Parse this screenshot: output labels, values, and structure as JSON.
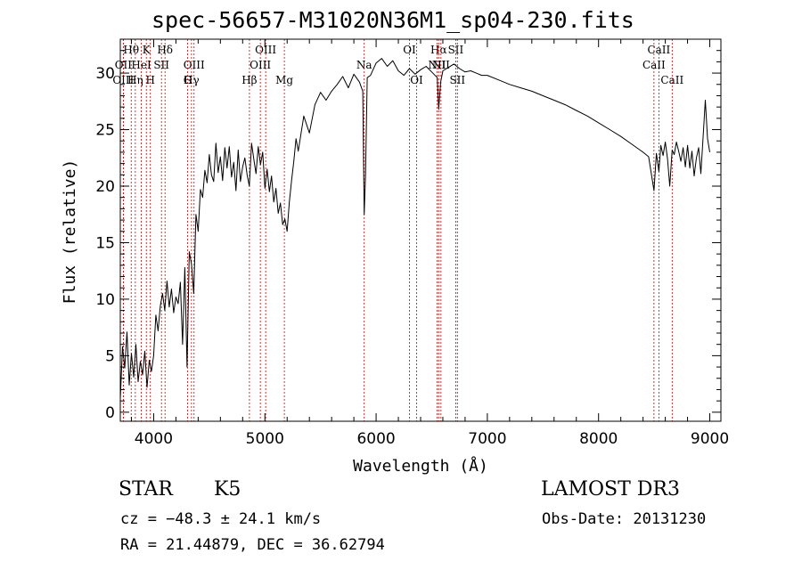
{
  "title": "spec-56657-M31020N36M1_sp04-230.fits",
  "info": {
    "class": "STAR",
    "subclass": "K5",
    "survey": "LAMOST DR3",
    "cz": "cz = −48.3 ± 24.1 km/s",
    "obs_date": "Obs-Date: 20131230",
    "radec": "RA =  21.44879, DEC =  36.62794"
  },
  "chart_data": {
    "type": "line",
    "title": "spec-56657-M31020N36M1_sp04-230.fits",
    "xlabel": "Wavelength (Å)",
    "ylabel": "Flux (relative)",
    "xlim": [
      3700,
      9100
    ],
    "ylim": [
      -0.8,
      33
    ],
    "xticks": [
      4000,
      5000,
      6000,
      7000,
      8000,
      9000
    ],
    "xtick_labels": [
      "4000",
      "5000",
      "6000",
      "7000",
      "8000",
      "9000"
    ],
    "yticks": [
      0,
      5,
      10,
      15,
      20,
      25,
      30
    ],
    "ytick_labels": [
      "0",
      "5",
      "10",
      "15",
      "20",
      "25",
      "30"
    ],
    "line_color": "#000000",
    "marker_color": "#cc0000",
    "series": [
      {
        "name": "flux",
        "x": [
          3700,
          3720,
          3740,
          3760,
          3780,
          3800,
          3820,
          3840,
          3860,
          3880,
          3900,
          3920,
          3940,
          3960,
          3980,
          4000,
          4020,
          4040,
          4060,
          4080,
          4100,
          4120,
          4140,
          4160,
          4180,
          4200,
          4220,
          4240,
          4260,
          4280,
          4300,
          4320,
          4340,
          4360,
          4380,
          4400,
          4420,
          4440,
          4460,
          4480,
          4500,
          4520,
          4540,
          4560,
          4580,
          4600,
          4620,
          4640,
          4660,
          4680,
          4700,
          4720,
          4740,
          4760,
          4780,
          4800,
          4820,
          4840,
          4860,
          4880,
          4900,
          4920,
          4940,
          4960,
          4980,
          5000,
          5020,
          5040,
          5060,
          5080,
          5100,
          5120,
          5140,
          5160,
          5180,
          5200,
          5220,
          5240,
          5260,
          5280,
          5300,
          5350,
          5400,
          5450,
          5500,
          5550,
          5600,
          5650,
          5700,
          5750,
          5800,
          5850,
          5880,
          5893,
          5905,
          5920,
          5950,
          6000,
          6050,
          6100,
          6150,
          6200,
          6250,
          6300,
          6350,
          6400,
          6450,
          6500,
          6550,
          6563,
          6580,
          6600,
          6650,
          6700,
          6750,
          6800,
          6850,
          6900,
          6950,
          7000,
          7100,
          7200,
          7300,
          7400,
          7500,
          7600,
          7700,
          7800,
          7900,
          8000,
          8100,
          8200,
          8300,
          8400,
          8450,
          8498,
          8520,
          8542,
          8560,
          8580,
          8600,
          8620,
          8640,
          8662,
          8680,
          8700,
          8720,
          8740,
          8760,
          8780,
          8800,
          8820,
          8840,
          8860,
          8880,
          8900,
          8920,
          8940,
          8960,
          8980,
          9000
        ],
        "y": [
          1.2,
          5.8,
          3.9,
          7.1,
          2.4,
          5.2,
          3.1,
          6.0,
          2.7,
          4.5,
          3.3,
          5.4,
          2.2,
          4.6,
          3.6,
          5.0,
          8.6,
          7.2,
          9.4,
          10.5,
          9.0,
          11.6,
          9.3,
          10.9,
          8.8,
          10.2,
          9.6,
          11.5,
          6.0,
          12.8,
          4.0,
          14.2,
          13.1,
          10.5,
          17.5,
          16.0,
          19.7,
          19.0,
          21.4,
          20.3,
          22.8,
          21.0,
          20.4,
          23.8,
          21.2,
          22.6,
          20.5,
          23.4,
          21.6,
          23.5,
          20.8,
          22.1,
          19.6,
          23.2,
          20.4,
          21.7,
          22.5,
          21.0,
          20.0,
          23.8,
          22.4,
          21.1,
          23.5,
          21.9,
          23.0,
          19.8,
          21.5,
          19.5,
          20.9,
          18.6,
          19.8,
          17.6,
          18.5,
          16.6,
          17.1,
          16.0,
          18.6,
          20.5,
          22.2,
          24.2,
          23.1,
          26.2,
          24.7,
          27.2,
          28.3,
          27.6,
          28.4,
          29.0,
          29.7,
          28.7,
          29.9,
          29.2,
          28.4,
          17.5,
          21.0,
          29.6,
          29.8,
          30.9,
          31.3,
          30.6,
          31.1,
          30.2,
          29.8,
          30.4,
          29.9,
          30.3,
          30.6,
          30.1,
          29.6,
          26.8,
          29.2,
          30.2,
          30.5,
          30.8,
          30.4,
          30.1,
          30.2,
          30.0,
          29.8,
          29.8,
          29.4,
          29.0,
          28.7,
          28.4,
          28.0,
          27.6,
          27.2,
          26.7,
          26.2,
          25.6,
          25.0,
          24.4,
          23.7,
          23.0,
          22.6,
          19.6,
          22.9,
          21.3,
          23.6,
          22.7,
          23.9,
          22.4,
          20.0,
          23.2,
          22.8,
          23.9,
          23.1,
          22.2,
          23.4,
          21.7,
          23.6,
          21.6,
          23.1,
          20.9,
          22.5,
          23.4,
          21.1,
          24.3,
          27.6,
          24.2,
          23.0
        ]
      }
    ],
    "line_markers": [
      {
        "label": "Hθ",
        "x": 3798
      },
      {
        "label": "K",
        "x": 3934
      },
      {
        "label": "Hδ",
        "x": 4102
      },
      {
        "label": "OII",
        "x": 3727
      },
      {
        "label": "HeI",
        "x": 3889
      },
      {
        "label": "SII",
        "x": 4070
      },
      {
        "label": "OIII",
        "x": 4363
      },
      {
        "label": "Hγ",
        "x": 4340
      },
      {
        "label": "OIII",
        "x": 3727
      },
      {
        "label": "Hη",
        "x": 3835
      },
      {
        "label": "H",
        "x": 3970
      },
      {
        "label": "G",
        "x": 4305
      },
      {
        "label": "OIII",
        "x": 5007
      },
      {
        "label": "OIII",
        "x": 4959
      },
      {
        "label": "Hβ",
        "x": 4861
      },
      {
        "label": "Mg",
        "x": 5175
      },
      {
        "label": "Na",
        "x": 5893
      },
      {
        "label": "OI",
        "x": 6300
      },
      {
        "label": "Hα",
        "x": 6563
      },
      {
        "label": "SII",
        "x": 6716
      },
      {
        "label": "NII",
        "x": 6548
      },
      {
        "label": "SII",
        "x": 6731
      },
      {
        "label": "NII",
        "x": 6583
      },
      {
        "label": "OI",
        "x": 6364
      },
      {
        "label": "CaII",
        "x": 8542
      },
      {
        "label": "CaII",
        "x": 8498
      },
      {
        "label": "CaII",
        "x": 8662
      }
    ]
  }
}
